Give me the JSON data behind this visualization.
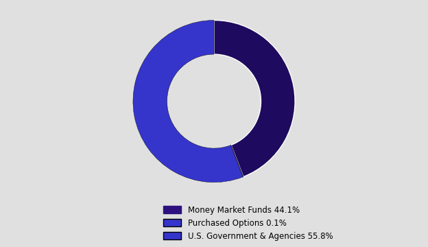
{
  "slices": [
    44.1,
    0.1,
    55.8
  ],
  "labels": [
    "Money Market Funds 44.1%",
    "Purchased Options 0.1%",
    "U.S. Government & Agencies 55.8%"
  ],
  "slice_colors": [
    "#1e0a5e",
    "#3535cc",
    "#3535cc"
  ],
  "background_color": "#e0e0e0",
  "donut_width": 0.42,
  "startangle": 90,
  "legend_labels": [
    "Money Market Funds 44.1%",
    "Purchased Options 0.1%",
    "U.S. Government & Agencies 55.8%"
  ],
  "legend_face_colors": [
    "#2d1080",
    "#3535cc",
    "#3535cc"
  ],
  "legend_edge_colors": [
    "#2d1080",
    "#000000",
    "#000000"
  ],
  "figure_width": 6.24,
  "figure_height": 3.6,
  "dpi": 100
}
